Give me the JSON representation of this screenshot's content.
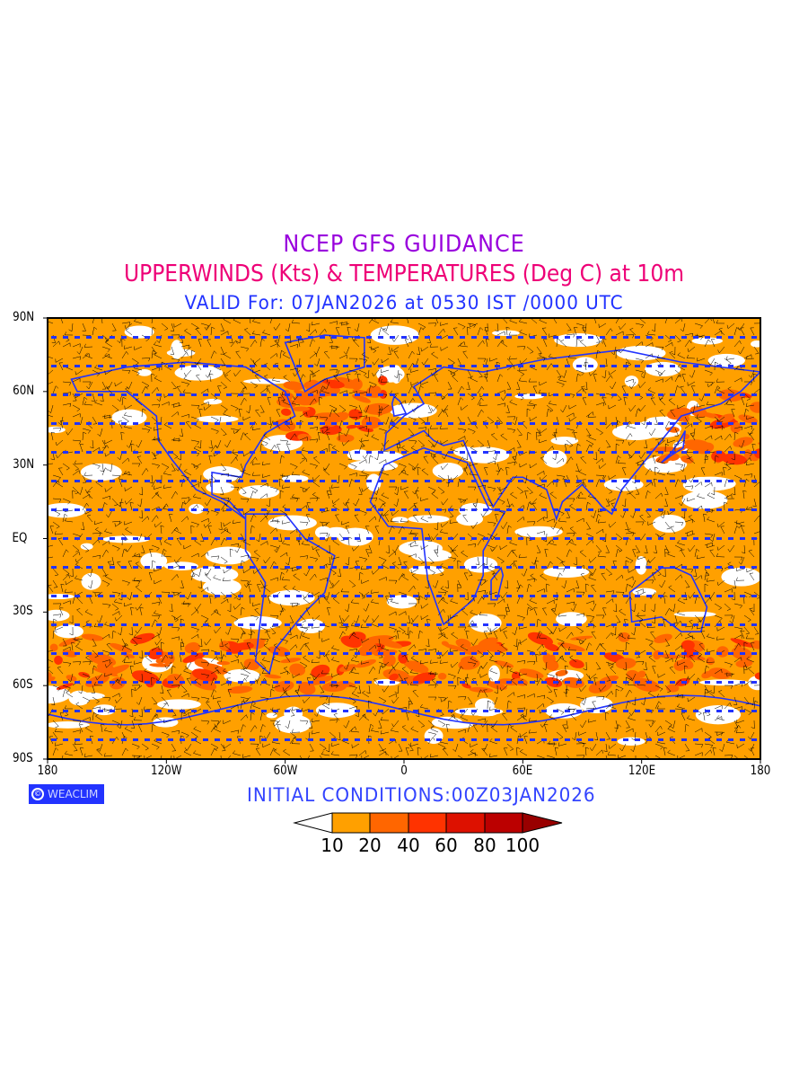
{
  "title": {
    "line1": "NCEP GFS GUIDANCE",
    "line2": "UPPERWINDS (Kts) & TEMPERATURES (Deg C) at 10m",
    "line3": "VALID For: 07JAN2026 at 0530 IST /0000 UTC"
  },
  "axes": {
    "lat_labels": [
      "90N",
      "60N",
      "30N",
      "EQ",
      "30S",
      "60S",
      "90S"
    ],
    "lat_values": [
      90,
      60,
      30,
      0,
      -30,
      -60,
      -90
    ],
    "lon_labels": [
      "180",
      "120W",
      "60W",
      "0",
      "60E",
      "120E",
      "180"
    ],
    "lon_values": [
      -180,
      -120,
      -60,
      0,
      60,
      120,
      180
    ]
  },
  "logo": {
    "text": "WEACLIM",
    "symbol": "©"
  },
  "initial_conditions": "INITIAL CONDITIONS:00Z03JAN2026",
  "colorbar": {
    "labels": [
      "10",
      "20",
      "40",
      "60",
      "80",
      "100"
    ],
    "colors": [
      "#ffffff",
      "#ffa000",
      "#ff6600",
      "#ff3300",
      "#dd1100",
      "#bb0000",
      "#990000"
    ]
  },
  "colors": {
    "land_outline": "#2233ff",
    "barbs": "#000000",
    "temperature_text": "#2233ff"
  }
}
